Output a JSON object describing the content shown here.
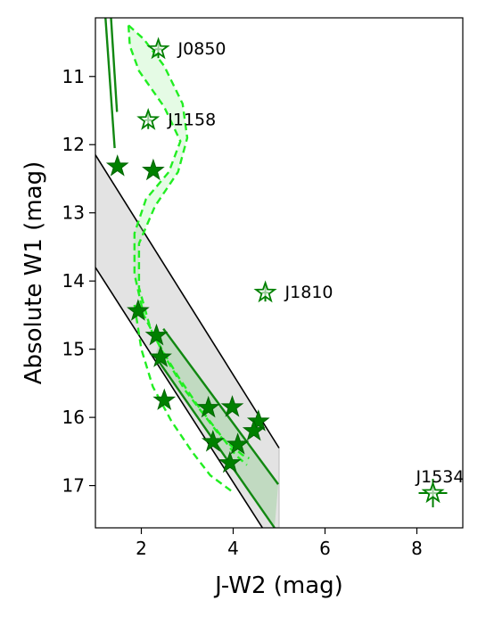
{
  "chart_data": {
    "type": "scatter",
    "xlabel": "J-W2 (mag)",
    "ylabel": "Absolute W1 (mag)",
    "xlim": [
      1.0,
      9.0
    ],
    "ylim": [
      17.62,
      10.14
    ],
    "y_inverted": true,
    "x_ticks": [
      2,
      4,
      6,
      8
    ],
    "y_ticks": [
      11,
      12,
      13,
      14,
      15,
      16,
      17
    ],
    "grid": false,
    "legend": "none",
    "colors": {
      "star": "#008000",
      "star_edge": "#006400",
      "model_dashed": "#22ee22",
      "model_fill": "rgba(150,240,150,0.25)",
      "band_fill": "#e3e3e3",
      "band_line": "#000000",
      "track": "#118811"
    },
    "filled_stars": [
      {
        "x": 1.48,
        "y": 12.32
      },
      {
        "x": 2.26,
        "y": 12.38
      },
      {
        "x": 1.93,
        "y": 14.44
      },
      {
        "x": 2.33,
        "y": 14.8
      },
      {
        "x": 2.42,
        "y": 15.12
      },
      {
        "x": 2.5,
        "y": 15.75
      },
      {
        "x": 3.46,
        "y": 15.86
      },
      {
        "x": 3.98,
        "y": 15.85
      },
      {
        "x": 3.56,
        "y": 16.36
      },
      {
        "x": 4.1,
        "y": 16.4
      },
      {
        "x": 3.93,
        "y": 16.67
      },
      {
        "x": 4.55,
        "y": 16.06
      },
      {
        "x": 4.45,
        "y": 16.2
      }
    ],
    "open_stars": [
      {
        "name": "J0850",
        "x": 2.37,
        "y": 10.6
      },
      {
        "name": "J1158",
        "x": 2.15,
        "y": 11.64
      },
      {
        "name": "J1810",
        "x": 4.7,
        "y": 14.17
      },
      {
        "name": "J1534",
        "x": 8.35,
        "y": 17.11
      }
    ],
    "band": {
      "upper_line": [
        [
          1.0,
          12.15
        ],
        [
          5.0,
          16.45
        ]
      ],
      "lower_line": [
        [
          1.0,
          13.8
        ],
        [
          5.0,
          18.0
        ]
      ],
      "right_edge_x": 5.0
    },
    "green_tracks": [
      [
        [
          1.22,
          10.14
        ],
        [
          1.42,
          12.05
        ]
      ],
      [
        [
          1.34,
          10.14
        ],
        [
          1.47,
          11.52
        ]
      ],
      [
        [
          2.48,
          14.7
        ],
        [
          4.98,
          16.98
        ]
      ],
      [
        [
          2.3,
          15.1
        ],
        [
          4.9,
          17.62
        ]
      ]
    ],
    "green_band": {
      "upper": [
        [
          2.48,
          14.7
        ],
        [
          4.98,
          16.98
        ]
      ],
      "lower": [
        [
          2.3,
          15.1
        ],
        [
          4.9,
          17.62
        ]
      ]
    },
    "dashed_curves": {
      "left": [
        [
          1.72,
          10.25
        ],
        [
          1.75,
          10.55
        ],
        [
          1.95,
          10.92
        ],
        [
          2.5,
          11.45
        ],
        [
          2.85,
          11.95
        ],
        [
          2.6,
          12.4
        ],
        [
          2.1,
          12.8
        ],
        [
          1.85,
          13.3
        ],
        [
          1.85,
          13.9
        ],
        [
          2.05,
          14.5
        ],
        [
          2.4,
          14.95
        ],
        [
          2.8,
          15.4
        ],
        [
          3.2,
          15.8
        ],
        [
          3.6,
          16.15
        ],
        [
          4.05,
          16.55
        ],
        [
          4.3,
          16.7
        ]
      ],
      "right": [
        [
          1.72,
          10.25
        ],
        [
          2.05,
          10.45
        ],
        [
          2.5,
          10.85
        ],
        [
          2.9,
          11.4
        ],
        [
          3.0,
          11.9
        ],
        [
          2.8,
          12.4
        ],
        [
          2.3,
          12.9
        ],
        [
          1.95,
          13.45
        ],
        [
          1.95,
          14.1
        ],
        [
          2.2,
          14.7
        ],
        [
          2.55,
          15.15
        ],
        [
          2.95,
          15.6
        ],
        [
          3.35,
          15.95
        ],
        [
          3.75,
          16.3
        ],
        [
          4.2,
          16.55
        ],
        [
          4.35,
          16.6
        ]
      ],
      "inner": [
        [
          1.85,
          14.35
        ],
        [
          2.0,
          15.0
        ],
        [
          2.25,
          15.55
        ],
        [
          2.65,
          16.05
        ],
        [
          3.1,
          16.5
        ],
        [
          3.5,
          16.85
        ],
        [
          4.0,
          17.1
        ]
      ]
    }
  }
}
